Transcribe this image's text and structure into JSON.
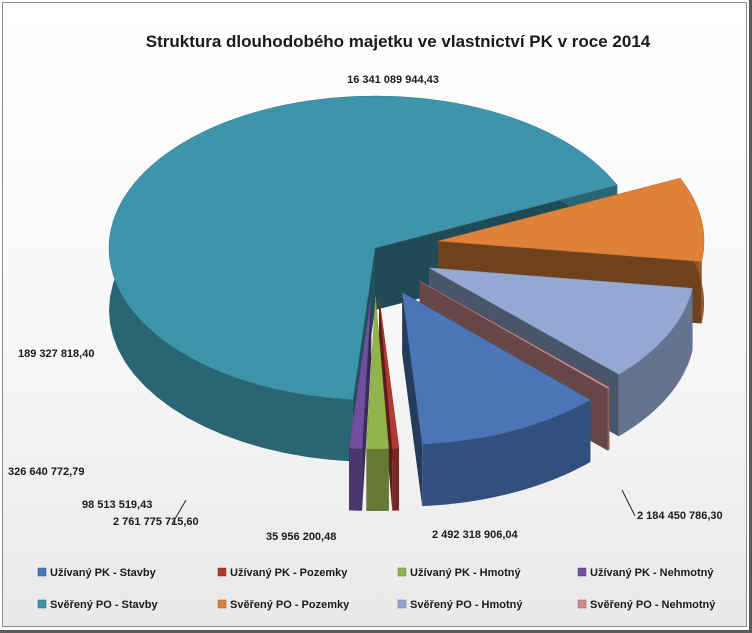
{
  "chart_data": {
    "type": "pie",
    "style": "3d-exploded",
    "title": "Struktura  dlouhodobého  majetku  ve vlastnictví  PK v roce 2014",
    "series": [
      {
        "name": "Užívaný PK - Stavby",
        "value": 2761775715.6,
        "label": "2 761 775 715,60",
        "color": "#4a76b8"
      },
      {
        "name": "Užívaný PK - Pozemky",
        "value": 98513519.43,
        "label": "98 513 519,43",
        "color": "#b23a34"
      },
      {
        "name": "Užívaný PK - Hmotný",
        "value": 326640772.79,
        "label": "326 640 772,79",
        "color": "#93b44c"
      },
      {
        "name": "Užívaný PK - Nehmotný",
        "value": 189327818.4,
        "label": "189 327 818,40",
        "color": "#6f4f9e"
      },
      {
        "name": "Svěřený PO - Stavby",
        "value": 16341089944.43,
        "label": "16 341 089 944,43",
        "color": "#3e94ab"
      },
      {
        "name": "Svěřený PO - Pozemky",
        "value": 2184450786.3,
        "label": "2 184 450 786,30",
        "color": "#e0813a"
      },
      {
        "name": "Svěřený PO - Hmotný",
        "value": 2492318906.04,
        "label": "2 492 318 906,04",
        "color": "#93a9d3"
      },
      {
        "name": "Svěřený PO - Nehmotný",
        "value": 35956200.48,
        "label": "35 956 200,48",
        "color": "#d08b8b"
      }
    ],
    "legend": "bottom"
  }
}
